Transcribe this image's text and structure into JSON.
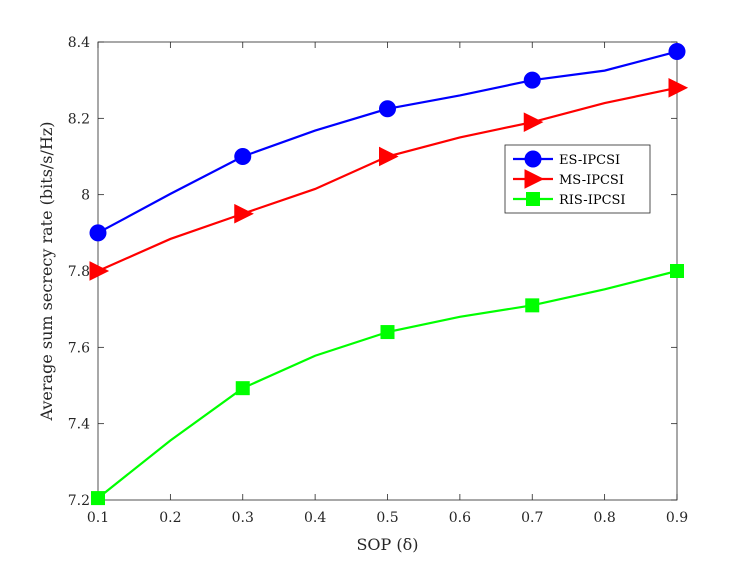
{
  "chart_data": {
    "type": "line",
    "xlabel": "SOP (δ)",
    "ylabel": "Average sum secrecy rate (bits/s/Hz)",
    "xlim": [
      0.1,
      0.9
    ],
    "ylim": [
      7.2,
      8.4
    ],
    "x_ticks": [
      0.1,
      0.2,
      0.3,
      0.4,
      0.5,
      0.6,
      0.7,
      0.8,
      0.9
    ],
    "y_ticks": [
      7.2,
      7.4,
      7.6,
      7.8,
      8,
      8.2,
      8.4
    ],
    "x_tick_labels": [
      "0.1",
      "0.2",
      "0.3",
      "0.4",
      "0.5",
      "0.6",
      "0.7",
      "0.8",
      "0.9"
    ],
    "y_tick_labels": [
      "7.2",
      "7.4",
      "7.6",
      "7.8",
      "8",
      "8.2",
      "8.4"
    ],
    "grid": false,
    "legend_position": "right",
    "x": [
      0.1,
      0.2,
      0.3,
      0.4,
      0.5,
      0.6,
      0.7,
      0.8,
      0.9
    ],
    "marker_x": [
      0.1,
      0.3,
      0.5,
      0.7,
      0.9
    ],
    "series": [
      {
        "name": "ES-IPCSI",
        "color": "#0000ff",
        "marker": "circle",
        "values": [
          7.9,
          8.002,
          8.1,
          8.168,
          8.225,
          8.26,
          8.3,
          8.325,
          8.375
        ]
      },
      {
        "name": "MS-IPCSI",
        "color": "#ff0000",
        "marker": "triangle-right",
        "values": [
          7.8,
          7.884,
          7.95,
          8.015,
          8.1,
          8.15,
          8.19,
          8.24,
          8.28
        ]
      },
      {
        "name": "RIS-IPCSI",
        "color": "#00ff00",
        "marker": "square",
        "values": [
          7.205,
          7.356,
          7.493,
          7.578,
          7.64,
          7.68,
          7.71,
          7.752,
          7.8
        ]
      }
    ]
  }
}
